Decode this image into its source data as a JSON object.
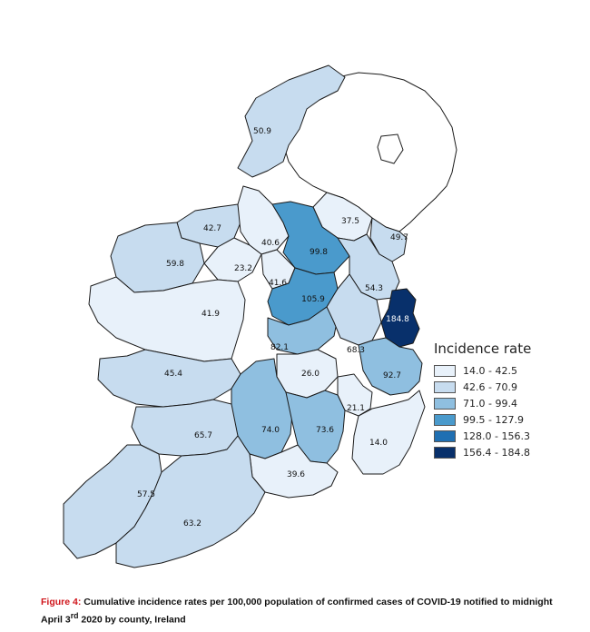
{
  "legend": {
    "title": "Incidence rate",
    "classes": [
      {
        "label": "14.0 - 42.5",
        "color": "#e8f1fa"
      },
      {
        "label": "42.6 - 70.9",
        "color": "#c7dcef"
      },
      {
        "label": "71.0 - 99.4",
        "color": "#8fbfe0"
      },
      {
        "label": "99.5 - 127.9",
        "color": "#4a9acc"
      },
      {
        "label": "128.0 - 156.3",
        "color": "#1f6fb2"
      },
      {
        "label": "156.4 - 184.8",
        "color": "#08306b"
      }
    ]
  },
  "counties": [
    {
      "value": "50.9",
      "cls": 1
    },
    {
      "value": "42.7",
      "cls": 1
    },
    {
      "value": "40.6",
      "cls": 0
    },
    {
      "value": "37.5",
      "cls": 0
    },
    {
      "value": "49.7",
      "cls": 1
    },
    {
      "value": "59.8",
      "cls": 1
    },
    {
      "value": "23.2",
      "cls": 0
    },
    {
      "value": "99.8",
      "cls": 3
    },
    {
      "value": "41.6",
      "cls": 0
    },
    {
      "value": "105.9",
      "cls": 3
    },
    {
      "value": "54.3",
      "cls": 1
    },
    {
      "value": "184.8",
      "cls": 5
    },
    {
      "value": "41.9",
      "cls": 0
    },
    {
      "value": "82.1",
      "cls": 2
    },
    {
      "value": "68.3",
      "cls": 1
    },
    {
      "value": "45.4",
      "cls": 1
    },
    {
      "value": "26.0",
      "cls": 0
    },
    {
      "value": "92.7",
      "cls": 2
    },
    {
      "value": "21.1",
      "cls": 0
    },
    {
      "value": "74.0",
      "cls": 2
    },
    {
      "value": "73.6",
      "cls": 2
    },
    {
      "value": "65.7",
      "cls": 1
    },
    {
      "value": "14.0",
      "cls": 0
    },
    {
      "value": "39.6",
      "cls": 0
    },
    {
      "value": "57.5",
      "cls": 1
    },
    {
      "value": "63.2",
      "cls": 1
    }
  ],
  "caption": {
    "figure": "Figure 4:",
    "text": " Cumulative incidence rates per 100,000 population of confirmed cases of COVID-19 notified to midnight April 3",
    "sup": "rd",
    "text2": " 2020 by county, Ireland"
  }
}
